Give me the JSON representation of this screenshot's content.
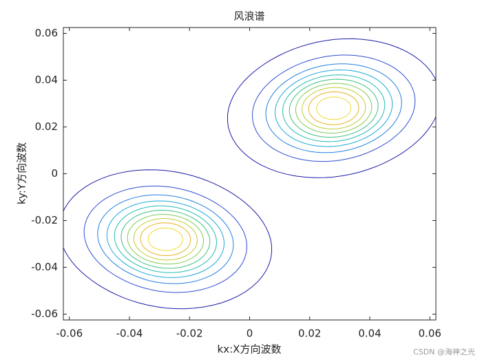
{
  "chart_data": {
    "type": "contour",
    "title": "风浪谱",
    "xlabel": "kx:X方向波数",
    "ylabel": "ky:Y方向波数",
    "watermark": "CSDN @海神之光",
    "xlim": [
      -0.062,
      0.062
    ],
    "ylim": [
      -0.0625,
      0.0625
    ],
    "xticks": [
      -0.06,
      -0.04,
      -0.02,
      0,
      0.02,
      0.04,
      0.06
    ],
    "yticks": [
      -0.06,
      -0.04,
      -0.02,
      0,
      0.02,
      0.04,
      0.06
    ],
    "peaks": [
      {
        "x": 0.028,
        "y": 0.028,
        "sx": 0.0125,
        "sy": 0.0105
      },
      {
        "x": -0.028,
        "y": -0.028,
        "sx": 0.0125,
        "sy": 0.0105
      }
    ],
    "levels": [
      0.02,
      0.1,
      0.2,
      0.3,
      0.4,
      0.5,
      0.6,
      0.7,
      0.8,
      0.9
    ],
    "level_colors": [
      "#1a1aa8",
      "#2a4bd0",
      "#1f7fe0",
      "#1aa8d8",
      "#20bcb0",
      "#3cc080",
      "#7ccc50",
      "#c0cc30",
      "#e8b020",
      "#f0d830"
    ]
  }
}
